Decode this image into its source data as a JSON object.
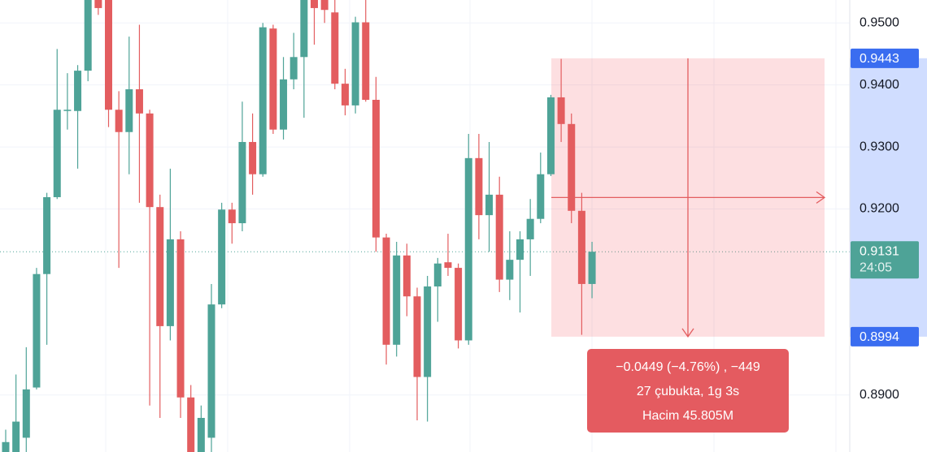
{
  "chart_data": {
    "type": "candlestick",
    "open": [
      0.8808,
      0.8808,
      0.8831,
      0.8912,
      0.9095,
      0.9219,
      0.9358,
      0.9358,
      0.9423,
      0.9537,
      0.9537,
      0.936,
      0.9324,
      0.9393,
      0.9354,
      0.9203,
      0.9011,
      0.9151,
      0.8896,
      0.8808,
      0.8831,
      0.9046,
      0.9199,
      0.9177,
      0.9308,
      0.9256,
      0.9491,
      0.9328,
      0.9409,
      0.9445,
      0.9537,
      0.9537,
      0.9517,
      0.9402,
      0.9367,
      0.9501,
      0.9376,
      0.9154,
      0.8981,
      0.9125,
      0.9059,
      0.8929,
      0.9075,
      0.9114,
      0.9105,
      0.8988,
      0.9282,
      0.919,
      0.9223,
      0.9086,
      0.9118,
      0.9151,
      0.9184,
      0.9256,
      0.938,
      0.9337,
      0.9197,
      0.9079
    ],
    "high": [
      0.8844,
      0.8933,
      0.8977,
      0.9105,
      0.9226,
      0.9458,
      0.9419,
      0.9432,
      0.9537,
      0.9537,
      0.9537,
      0.939,
      0.9478,
      0.9497,
      0.936,
      0.9223,
      0.9265,
      0.9164,
      0.8916,
      0.8883,
      0.9079,
      0.921,
      0.921,
      0.9373,
      0.9354,
      0.95,
      0.9497,
      0.9445,
      0.9484,
      0.9537,
      0.9537,
      0.9537,
      0.9537,
      0.9426,
      0.951,
      0.9537,
      0.9413,
      0.916,
      0.9147,
      0.9144,
      0.9073,
      0.9092,
      0.9121,
      0.916,
      0.9112,
      0.9321,
      0.9321,
      0.9308,
      0.9252,
      0.9164,
      0.9164,
      0.9216,
      0.9291,
      0.9384,
      0.9442,
      0.9354,
      0.9226,
      0.9147
    ],
    "low": [
      0.8808,
      0.8808,
      0.8808,
      0.8909,
      0.8981,
      0.9216,
      0.9328,
      0.9265,
      0.9406,
      0.9513,
      0.9332,
      0.9105,
      0.9256,
      0.921,
      0.8883,
      0.8863,
      0.8988,
      0.8863,
      0.8808,
      0.8808,
      0.8808,
      0.904,
      0.9144,
      0.9164,
      0.9223,
      0.9252,
      0.9321,
      0.9312,
      0.9393,
      0.9347,
      0.9465,
      0.95,
      0.9393,
      0.9351,
      0.9354,
      0.9373,
      0.9131,
      0.8949,
      0.8962,
      0.9027,
      0.8859,
      0.8857,
      0.9018,
      0.9092,
      0.8975,
      0.8981,
      0.9151,
      0.9131,
      0.9066,
      0.9053,
      0.9033,
      0.9092,
      0.9177,
      0.9253,
      0.9308,
      0.9177,
      0.8997,
      0.9056
    ],
    "close": [
      0.8824,
      0.8857,
      0.8909,
      0.9095,
      0.9219,
      0.936,
      0.936,
      0.9423,
      0.9537,
      0.9524,
      0.936,
      0.9324,
      0.9393,
      0.9354,
      0.9203,
      0.9011,
      0.9151,
      0.8896,
      0.8808,
      0.8863,
      0.9046,
      0.9199,
      0.9177,
      0.9308,
      0.9256,
      0.9493,
      0.9328,
      0.9409,
      0.9445,
      0.9537,
      0.9524,
      0.9521,
      0.9402,
      0.9367,
      0.9501,
      0.9376,
      0.9154,
      0.8981,
      0.9125,
      0.9059,
      0.8929,
      0.9075,
      0.9112,
      0.9105,
      0.8988,
      0.9282,
      0.919,
      0.9223,
      0.9086,
      0.9118,
      0.9151,
      0.9184,
      0.9256,
      0.938,
      0.9337,
      0.9197,
      0.9079,
      0.9131
    ],
    "up_color": "#4ea397",
    "down_color": "#e35d5f",
    "ylim": [
      0.8808,
      0.9537
    ],
    "yticks": [
      {
        "value": 0.89,
        "label": "0.8900"
      },
      {
        "value": 0.92,
        "label": "0.9200"
      },
      {
        "value": 0.93,
        "label": "0.9300"
      },
      {
        "value": 0.94,
        "label": "0.9400"
      },
      {
        "value": 0.95,
        "label": "0.9500"
      }
    ],
    "grid": true,
    "price_tags": [
      0.9443,
      0.8994
    ],
    "last_price": {
      "value": 0.9131,
      "label": "0.9131",
      "countdown": "24:05"
    },
    "measure": {
      "from": 0.9443,
      "to": 0.8994,
      "lines": [
        "−0.0449 (−4.76%) , −449",
        "27 çubukta, 1g 3s",
        "Hacim 45.805M"
      ]
    }
  }
}
